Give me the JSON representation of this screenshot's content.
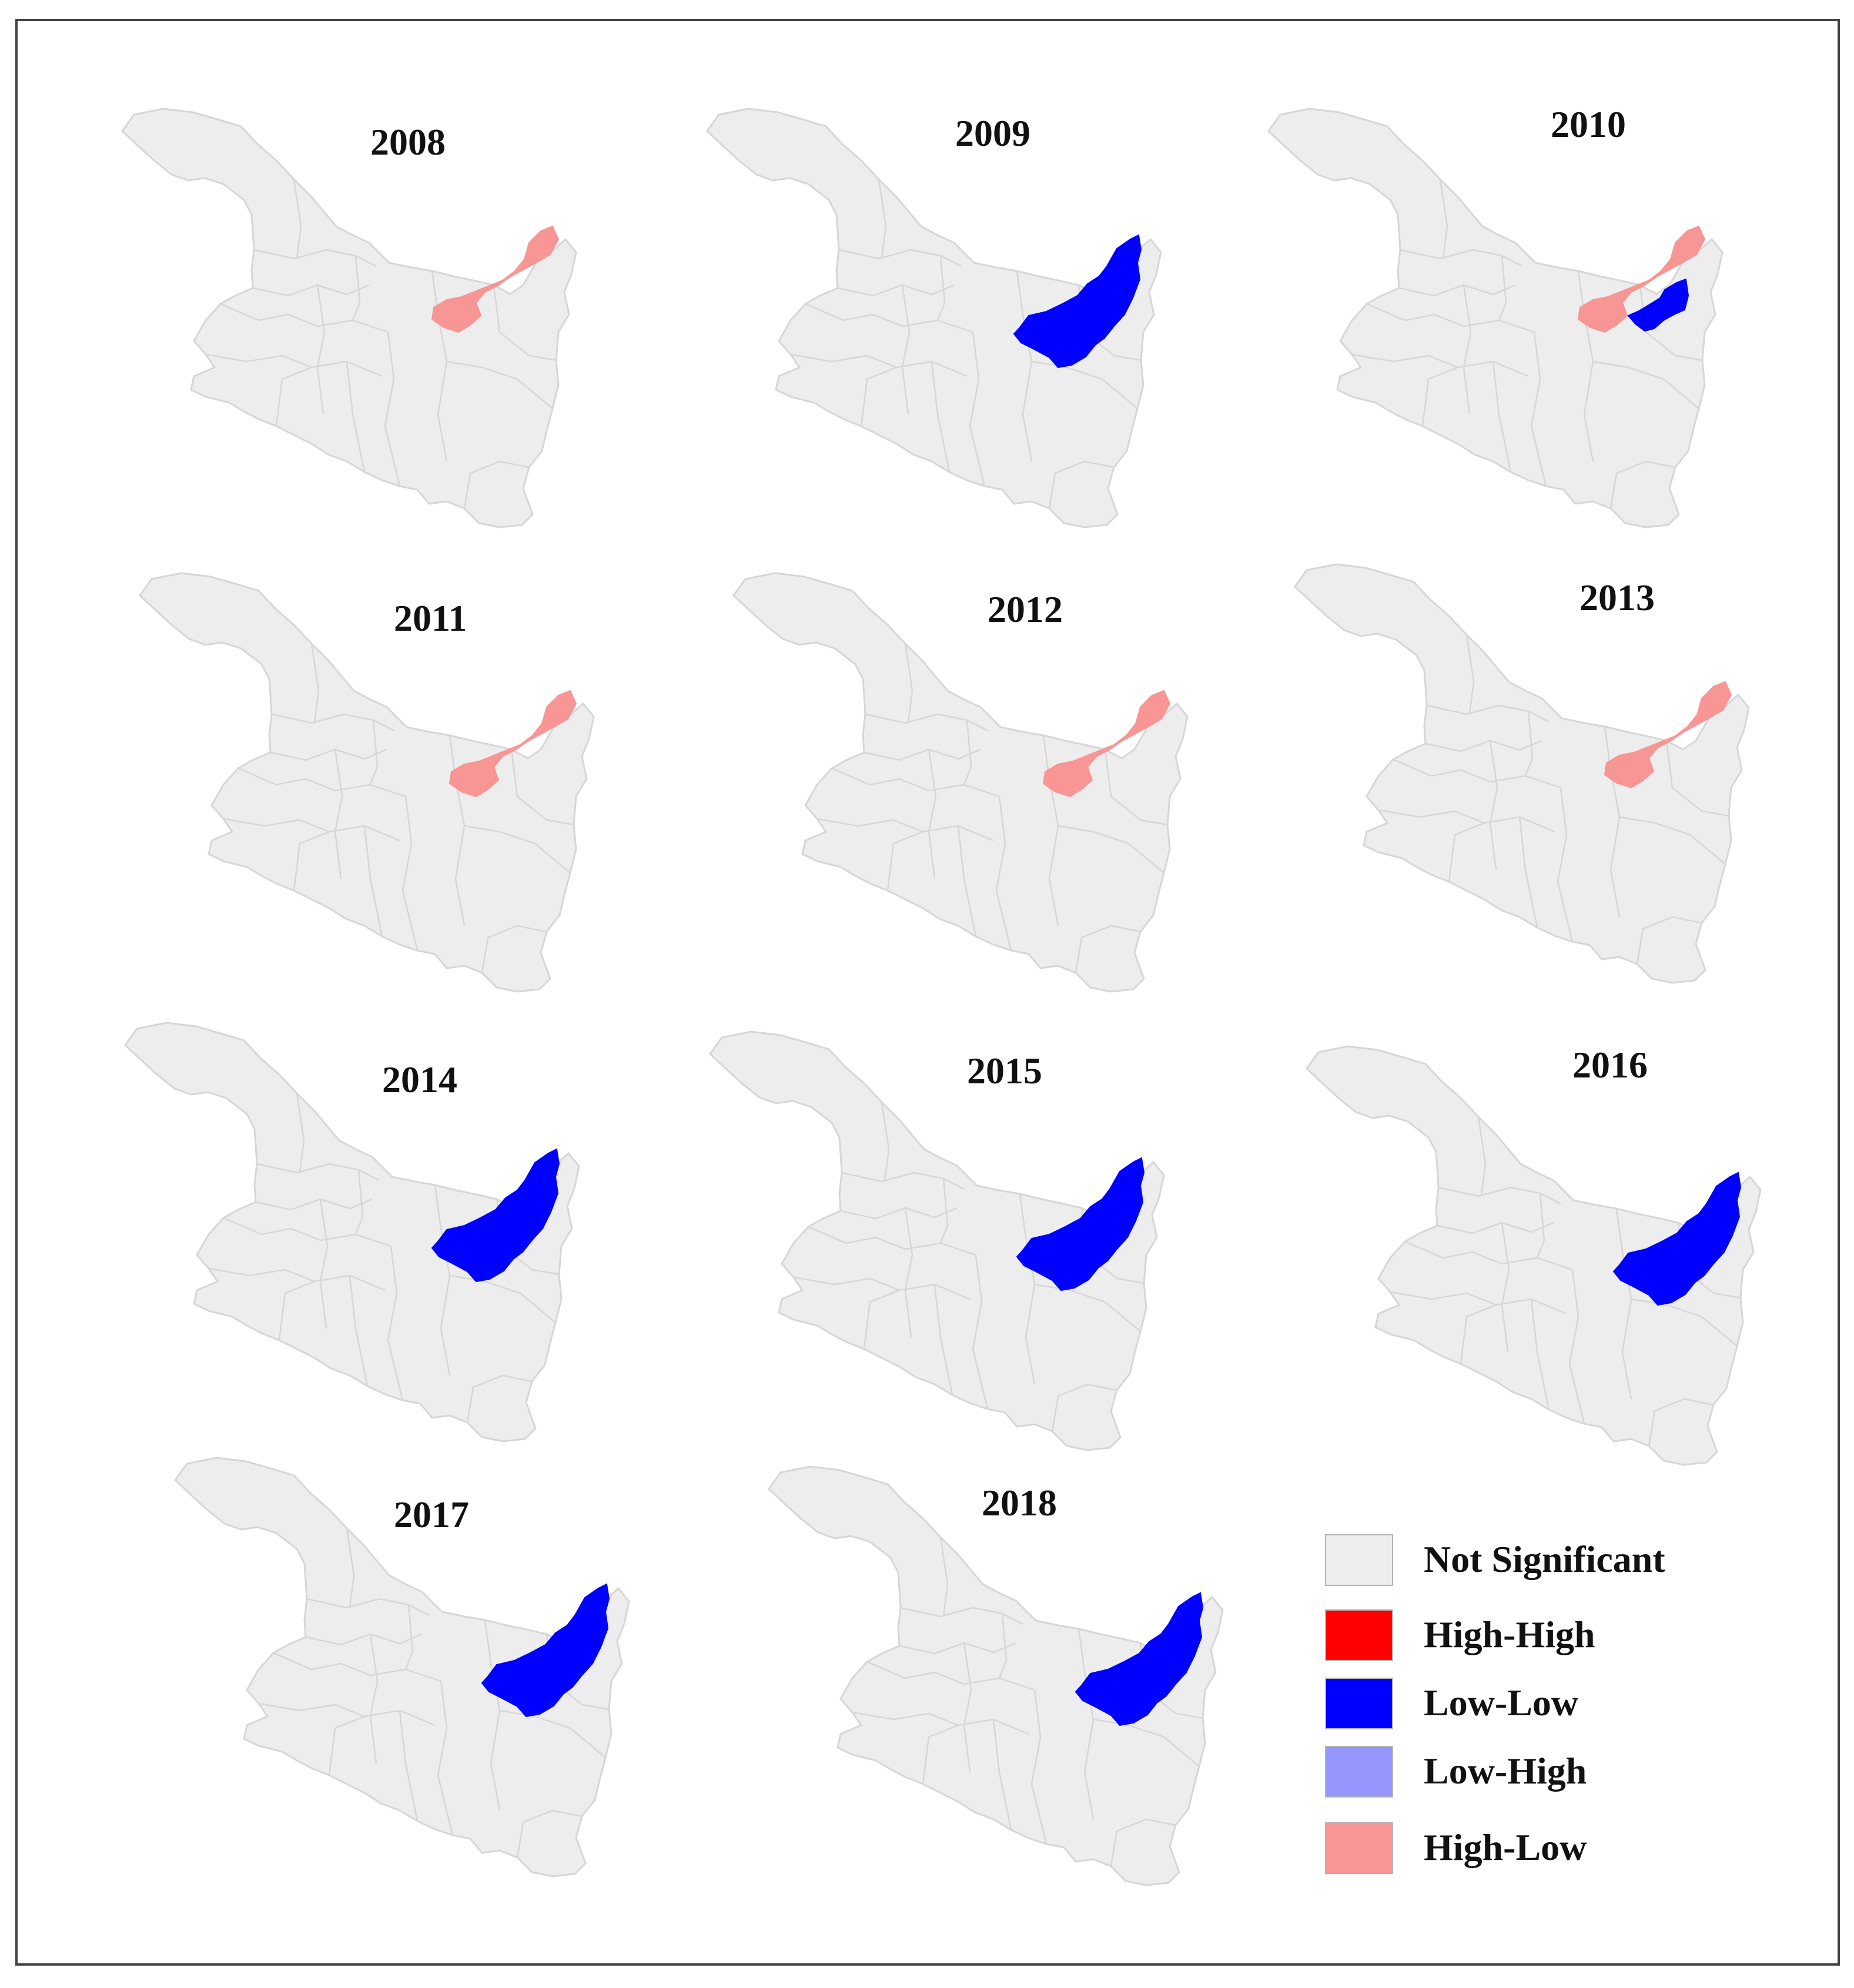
{
  "colors": {
    "not_significant": "#ededed",
    "high_high": "#ff0000",
    "low_low": "#0000ff",
    "low_high": "#9696ff",
    "high_low": "#f89595",
    "border": "#d6d6d6"
  },
  "panels": [
    {
      "year": "2008",
      "highlight": "high-low"
    },
    {
      "year": "2009",
      "highlight": "low-low"
    },
    {
      "year": "2010",
      "highlight": "high-low+low-low"
    },
    {
      "year": "2011",
      "highlight": "high-low"
    },
    {
      "year": "2012",
      "highlight": "high-low"
    },
    {
      "year": "2013",
      "highlight": "high-low"
    },
    {
      "year": "2014",
      "highlight": "low-low"
    },
    {
      "year": "2015",
      "highlight": "low-low"
    },
    {
      "year": "2016",
      "highlight": "low-low"
    },
    {
      "year": "2017",
      "highlight": "low-low"
    },
    {
      "year": "2018",
      "highlight": "low-low"
    }
  ],
  "legend": [
    {
      "label": "Not Significant",
      "color": "#ededed"
    },
    {
      "label": "High-High",
      "color": "#ff0000"
    },
    {
      "label": "Low-Low",
      "color": "#0000ff"
    },
    {
      "label": "Low-High",
      "color": "#9696ff"
    },
    {
      "label": "High-Low",
      "color": "#f89595"
    }
  ]
}
